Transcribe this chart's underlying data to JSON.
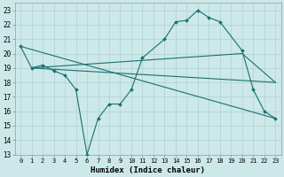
{
  "xlabel": "Humidex (Indice chaleur)",
  "bg_color": "#cce8e8",
  "grid_color": "#b0d0d0",
  "line_color": "#1a7070",
  "xlim": [
    -0.5,
    23.5
  ],
  "ylim": [
    13,
    23.5
  ],
  "yticks": [
    13,
    14,
    15,
    16,
    17,
    18,
    19,
    20,
    21,
    22,
    23
  ],
  "xticks": [
    0,
    1,
    2,
    3,
    4,
    5,
    6,
    7,
    8,
    9,
    10,
    11,
    12,
    13,
    14,
    15,
    16,
    17,
    18,
    19,
    20,
    21,
    22,
    23
  ],
  "line1_x": [
    0,
    1,
    2,
    3,
    4,
    5,
    6,
    7,
    8,
    9,
    10,
    11,
    13,
    14,
    15,
    16,
    17,
    18,
    20,
    21,
    22,
    23
  ],
  "line1_y": [
    20.5,
    19.0,
    19.2,
    18.8,
    18.5,
    17.5,
    13.0,
    15.5,
    16.5,
    16.5,
    17.5,
    19.7,
    21.0,
    22.2,
    22.3,
    23.0,
    22.5,
    22.2,
    20.2,
    17.5,
    16.0,
    15.5
  ],
  "line2_x": [
    0,
    23
  ],
  "line2_y": [
    20.5,
    15.5
  ],
  "line3_x": [
    1,
    20,
    23
  ],
  "line3_y": [
    19.0,
    20.0,
    18.0
  ],
  "line4_x": [
    1,
    23
  ],
  "line4_y": [
    19.0,
    18.0
  ]
}
